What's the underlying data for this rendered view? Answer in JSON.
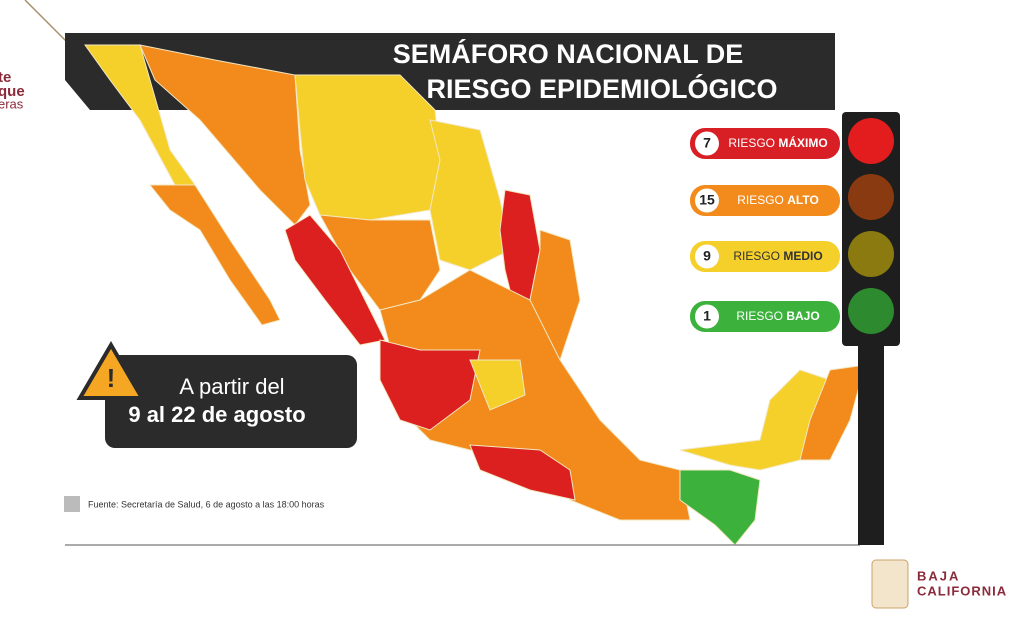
{
  "header": {
    "title_line_1": "SEMÁFORO NACIONAL DE",
    "title_line_2": "RIESGO EPIDEMIOLÓGICO"
  },
  "legend": [
    {
      "count": 7,
      "prefix": "RIESGO",
      "level": "MÁXIMO"
    },
    {
      "count": 15,
      "prefix": "RIESGO",
      "level": "ALTO"
    },
    {
      "count": 9,
      "prefix": "RIESGO",
      "level": "MEDIO"
    },
    {
      "count": 1,
      "prefix": "RIESGO",
      "level": "BAJO"
    }
  ],
  "period": {
    "line_1": "A partir del",
    "line_2": "9 al 22 de agosto"
  },
  "source": "Fuente: Secretaría de Salud, 6 de agosto a las 18:00 horas",
  "left_logo": {
    "line_1": "te",
    "line_2": "que",
    "line_3": "eras"
  },
  "right_logo": {
    "line_1": "BAJA",
    "line_2": "CALIFORNIA"
  }
}
